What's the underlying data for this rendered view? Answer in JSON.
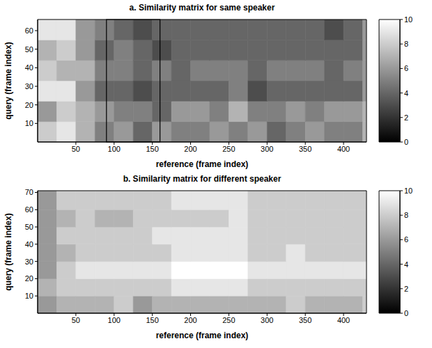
{
  "chart_data": [
    {
      "type": "heatmap",
      "title": "a. Similarity matrix for same speaker",
      "x_label": "reference (frame index)",
      "y_label": "query (frame index)",
      "xlim": [
        0,
        430
      ],
      "ylim": [
        0,
        66
      ],
      "xticks": [
        50,
        100,
        150,
        200,
        250,
        300,
        350,
        400
      ],
      "yticks": [
        10,
        20,
        30,
        40,
        50,
        60
      ],
      "x_edges": [
        0,
        25,
        50,
        75,
        100,
        125,
        150,
        175,
        200,
        225,
        250,
        275,
        300,
        325,
        350,
        375,
        400,
        425,
        430
      ],
      "y_edges": [
        0,
        11,
        22,
        33,
        44,
        55,
        66
      ],
      "cells": [
        [
          8,
          9,
          7,
          5,
          6,
          4,
          6,
          5,
          5,
          6,
          5,
          6,
          4,
          5,
          6,
          5,
          5,
          7
        ],
        [
          6,
          8,
          7,
          6,
          5,
          5,
          4,
          6,
          6,
          5,
          7,
          5,
          5,
          6,
          5,
          6,
          6,
          7
        ],
        [
          9,
          9,
          6,
          4,
          4,
          3,
          4,
          4,
          4,
          4,
          5,
          3,
          4,
          4,
          4,
          4,
          4,
          6
        ],
        [
          8,
          7,
          7,
          5,
          5,
          4,
          5,
          4,
          5,
          5,
          5,
          4,
          5,
          5,
          5,
          4,
          5,
          6
        ],
        [
          7,
          8,
          6,
          4,
          5,
          4,
          3,
          4,
          4,
          4,
          4,
          4,
          4,
          4,
          4,
          4,
          4,
          6
        ],
        [
          9,
          9,
          6,
          5,
          4,
          3,
          4,
          4,
          4,
          4,
          4,
          4,
          4,
          4,
          4,
          3,
          4,
          6
        ]
      ],
      "highlight_x": [
        90,
        160
      ],
      "colorbar": {
        "range": [
          0,
          10
        ],
        "ticks": [
          0,
          2,
          4,
          6,
          8,
          10
        ]
      }
    },
    {
      "type": "heatmap",
      "title": "b. Similarity matrix for different speaker",
      "x_label": "reference (frame index)",
      "y_label": "query (frame index)",
      "xlim": [
        0,
        430
      ],
      "ylim": [
        0,
        71
      ],
      "xticks": [
        50,
        100,
        150,
        200,
        250,
        300,
        350,
        400
      ],
      "yticks": [
        10,
        20,
        30,
        40,
        50,
        60,
        70
      ],
      "x_edges": [
        0,
        25,
        50,
        75,
        100,
        125,
        150,
        175,
        200,
        225,
        250,
        275,
        300,
        325,
        350,
        375,
        400,
        425,
        430
      ],
      "y_edges": [
        0,
        10,
        20,
        30,
        40,
        50,
        60,
        71
      ],
      "cells": [
        [
          6,
          7,
          7,
          7,
          8,
          6,
          7,
          7,
          7,
          7,
          7,
          7,
          7,
          8,
          7,
          7,
          7,
          8
        ],
        [
          7,
          8,
          8,
          8,
          8,
          8,
          8,
          9,
          9,
          9,
          9,
          8,
          8,
          8,
          8,
          8,
          8,
          8
        ],
        [
          6,
          8,
          9,
          9,
          9,
          9,
          9,
          10,
          10,
          10,
          10,
          9,
          9,
          9,
          9,
          9,
          9,
          9
        ],
        [
          6,
          7,
          8,
          8,
          8,
          8,
          8,
          9,
          9,
          9,
          9,
          8,
          8,
          9,
          8,
          8,
          8,
          8
        ],
        [
          6,
          8,
          8,
          8,
          8,
          8,
          9,
          9,
          9,
          9,
          9,
          8,
          8,
          8,
          8,
          8,
          8,
          8
        ],
        [
          6,
          7,
          8,
          7,
          7,
          8,
          8,
          8,
          8,
          8,
          9,
          8,
          8,
          8,
          8,
          8,
          8,
          8
        ],
        [
          6,
          8,
          8,
          8,
          8,
          8,
          8,
          9,
          9,
          9,
          9,
          8,
          8,
          8,
          8,
          8,
          8,
          8
        ]
      ],
      "colorbar": {
        "range": [
          0,
          10
        ],
        "ticks": [
          0,
          2,
          4,
          6,
          8,
          10
        ]
      }
    }
  ]
}
